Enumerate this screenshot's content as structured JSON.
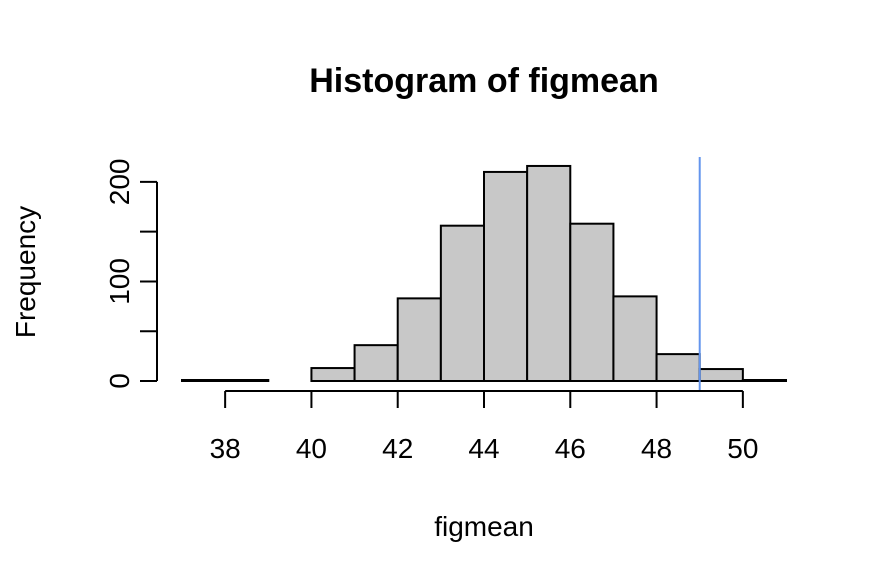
{
  "chart_data": {
    "type": "bar",
    "subtype": "histogram",
    "title": "Histogram of figmean",
    "xlabel": "figmean",
    "ylabel": "Frequency",
    "bins": [
      {
        "start": 37,
        "end": 38,
        "count": 1
      },
      {
        "start": 38,
        "end": 39,
        "count": 1
      },
      {
        "start": 39,
        "end": 40,
        "count": 0
      },
      {
        "start": 40,
        "end": 41,
        "count": 13
      },
      {
        "start": 41,
        "end": 42,
        "count": 36
      },
      {
        "start": 42,
        "end": 43,
        "count": 83
      },
      {
        "start": 43,
        "end": 44,
        "count": 156
      },
      {
        "start": 44,
        "end": 45,
        "count": 210
      },
      {
        "start": 45,
        "end": 46,
        "count": 216
      },
      {
        "start": 46,
        "end": 47,
        "count": 158
      },
      {
        "start": 47,
        "end": 48,
        "count": 85
      },
      {
        "start": 48,
        "end": 49,
        "count": 27
      },
      {
        "start": 49,
        "end": 50,
        "count": 12
      },
      {
        "start": 50,
        "end": 51,
        "count": 1
      }
    ],
    "xlim": [
      37,
      51
    ],
    "ylim": [
      0,
      225
    ],
    "x_ticks": [
      38,
      40,
      42,
      44,
      46,
      48,
      50
    ],
    "y_ticks": [
      0,
      50,
      100,
      150,
      200
    ],
    "y_tick_labels": [
      "0",
      "",
      "100",
      "",
      "200"
    ],
    "vertical_line": {
      "x": 49,
      "color": "#6495ED"
    },
    "bar_fill": "#C8C8C8",
    "bar_stroke": "#000000",
    "grid": false,
    "legend": "none"
  }
}
